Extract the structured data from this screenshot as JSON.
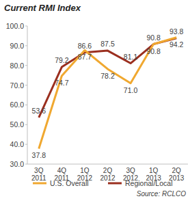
{
  "chart_data": {
    "type": "line",
    "title": "Current RMI Index",
    "source": "Source: RCLCO",
    "categories": [
      "3Q 2011",
      "4Q 2011",
      "1Q 2012",
      "2Q 2012",
      "3Q 2012",
      "1Q 2013",
      "2Q 2013"
    ],
    "series": [
      {
        "name": "U.S. Overall",
        "color": "#f0a830",
        "values": [
          37.8,
          74.7,
          87.7,
          78.2,
          71.0,
          90.8,
          94.2
        ],
        "value_labels": [
          "37.8",
          "74.7",
          "87.7",
          "78.2",
          "71.0",
          "90.8",
          "94.2"
        ]
      },
      {
        "name": "Regional/Local",
        "color": "#9b2f1f",
        "values": [
          53.6,
          79.2,
          86.6,
          87.5,
          81.1,
          90.8,
          93.8
        ],
        "value_labels": [
          "53.6",
          "79.2",
          "86.6",
          "87.5",
          "81.1",
          "90.8",
          "93.8"
        ]
      }
    ],
    "ylim": [
      30,
      100
    ],
    "yticks": [
      {
        "value": 30,
        "label": "30.0"
      },
      {
        "value": 40,
        "label": "40.0"
      },
      {
        "value": 50,
        "label": "50.0"
      },
      {
        "value": 60,
        "label": "60.0"
      },
      {
        "value": 70,
        "label": "70.0"
      },
      {
        "value": 80,
        "label": "80.0"
      },
      {
        "value": 90,
        "label": "90.0"
      },
      {
        "value": 100,
        "label": "100.0"
      }
    ],
    "grid": false,
    "legend": "bottom",
    "data_labels": true
  }
}
